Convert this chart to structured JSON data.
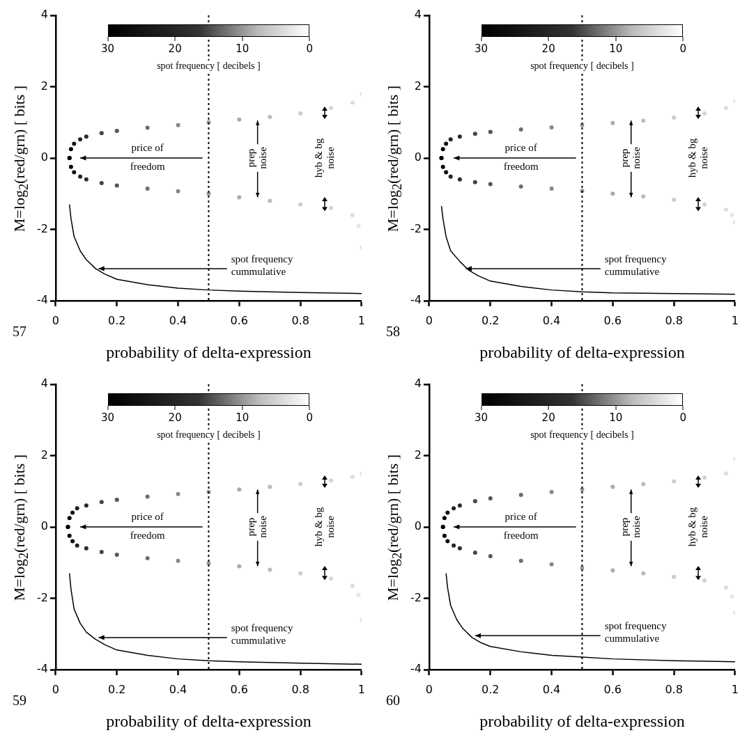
{
  "chart_data": [
    {
      "type": "scatter",
      "xlabel": "probability of delta-expression",
      "ylabel": "M=log$_{2}$(red/grn) [ bits ]",
      "clabel": "spot frequency [ decibels ]",
      "xlim": [
        0,
        1
      ],
      "ylim": [
        -4,
        4
      ],
      "xticks": [
        0,
        0.2,
        0.4,
        0.6,
        0.8,
        1
      ],
      "yticks": [
        -4,
        -2,
        0,
        2,
        4
      ],
      "grid": false,
      "legend": false,
      "marker": "circle",
      "ref_lines": [
        {
          "axis": "x",
          "value": 0.5,
          "color": "#000000",
          "line_style": "dotted"
        }
      ],
      "annotations": [
        "price of freedom",
        "prep noise",
        "hyb & bg noise",
        {
          "text": "spot frequency cummulative",
          "x": 0.14,
          "y": -3.1
        },
        "57",
        "30",
        "20",
        "10",
        "0"
      ],
      "series": [
        {
          "x": [
            0.045,
            0.05,
            0.06,
            0.08,
            0.1,
            0.15,
            0.2,
            0.3,
            0.4,
            0.5,
            0.6,
            0.7,
            0.8,
            0.9,
            0.97,
            1
          ],
          "values": [
            0,
            0.25,
            0.4,
            0.52,
            0.6,
            0.7,
            0.76,
            0.85,
            0.92,
            1.0,
            1.08,
            1.15,
            1.25,
            1.4,
            1.55,
            1.8
          ],
          "colors": [
            "#000000",
            "#000000",
            "#111111",
            "#222222",
            "#2b2b2b",
            "#444444",
            "#555555",
            "#6e6e6e",
            "#888888",
            "#999999",
            "#aaaaaa",
            "#bbbbbb",
            "#cccccc",
            "#d4d4d4",
            "#dddddd",
            "#e5e5e5"
          ]
        },
        {
          "x": [
            0.045,
            0.05,
            0.06,
            0.08,
            0.1,
            0.15,
            0.2,
            0.3,
            0.4,
            0.5,
            0.6,
            0.7,
            0.8,
            0.9,
            0.97,
            0.99,
            1
          ],
          "values": [
            0,
            -0.25,
            -0.4,
            -0.52,
            -0.6,
            -0.7,
            -0.77,
            -0.86,
            -0.93,
            -1.0,
            -1.1,
            -1.2,
            -1.3,
            -1.4,
            -1.6,
            -1.9,
            -2.5
          ],
          "colors": [
            "#000000",
            "#000000",
            "#111111",
            "#222222",
            "#2b2b2b",
            "#444444",
            "#555555",
            "#6e6e6e",
            "#888888",
            "#999999",
            "#aaaaaa",
            "#bbbbbb",
            "#cccccc",
            "#d4d4d4",
            "#dddddd",
            "#e5e5e5",
            "#e5e5e5"
          ]
        },
        {
          "type": "line",
          "color": "#000000",
          "marker": "none",
          "x": [
            0.045,
            0.05,
            0.06,
            0.08,
            0.1,
            0.13,
            0.16,
            0.2,
            0.3,
            0.4,
            0.5,
            0.6,
            0.8,
            1
          ],
          "values": [
            -1.3,
            -1.7,
            -2.2,
            -2.6,
            -2.85,
            -3.1,
            -3.25,
            -3.4,
            -3.55,
            -3.65,
            -3.7,
            -3.73,
            -3.77,
            -3.8
          ]
        }
      ]
    },
    {
      "type": "scatter",
      "xlabel": "probability of delta-expression",
      "ylabel": "M=log$_{2}$(red/grn) [ bits ]",
      "clabel": "spot frequency [ decibels ]",
      "xlim": [
        0,
        1
      ],
      "ylim": [
        -4,
        4
      ],
      "xticks": [
        0,
        0.2,
        0.4,
        0.6,
        0.8,
        1
      ],
      "yticks": [
        -4,
        -2,
        0,
        2,
        4
      ],
      "grid": false,
      "legend": false,
      "marker": "circle",
      "ref_lines": [
        {
          "axis": "x",
          "value": 0.5,
          "color": "#000000",
          "line_style": "dotted"
        }
      ],
      "annotations": [
        "price of freedom",
        "prep noise",
        "hyb & bg noise",
        {
          "text": "spot frequency cummulative",
          "x": 0.12,
          "y": -3.1
        },
        "58",
        "30",
        "20",
        "10",
        "0"
      ],
      "series": [
        {
          "x": [
            0.04,
            0.045,
            0.055,
            0.07,
            0.1,
            0.15,
            0.2,
            0.3,
            0.4,
            0.5,
            0.6,
            0.7,
            0.8,
            0.9,
            0.97,
            1
          ],
          "values": [
            0,
            0.25,
            0.4,
            0.52,
            0.6,
            0.68,
            0.73,
            0.8,
            0.86,
            0.92,
            0.98,
            1.05,
            1.13,
            1.25,
            1.4,
            1.6
          ],
          "colors": [
            "#000000",
            "#000000",
            "#111111",
            "#222222",
            "#2b2b2b",
            "#444444",
            "#555555",
            "#6e6e6e",
            "#888888",
            "#999999",
            "#aaaaaa",
            "#bbbbbb",
            "#cccccc",
            "#d4d4d4",
            "#dddddd",
            "#e5e5e5"
          ]
        },
        {
          "x": [
            0.04,
            0.045,
            0.055,
            0.07,
            0.1,
            0.15,
            0.2,
            0.3,
            0.4,
            0.5,
            0.6,
            0.7,
            0.8,
            0.9,
            0.97,
            0.99,
            1
          ],
          "values": [
            0,
            -0.25,
            -0.4,
            -0.52,
            -0.6,
            -0.68,
            -0.73,
            -0.8,
            -0.86,
            -0.92,
            -1.0,
            -1.08,
            -1.17,
            -1.3,
            -1.45,
            -1.6,
            -1.8
          ],
          "colors": [
            "#000000",
            "#000000",
            "#111111",
            "#222222",
            "#2b2b2b",
            "#444444",
            "#555555",
            "#6e6e6e",
            "#888888",
            "#999999",
            "#aaaaaa",
            "#bbbbbb",
            "#cccccc",
            "#d4d4d4",
            "#dddddd",
            "#e5e5e5",
            "#e5e5e5"
          ]
        },
        {
          "type": "line",
          "color": "#000000",
          "marker": "none",
          "x": [
            0.04,
            0.045,
            0.055,
            0.07,
            0.1,
            0.13,
            0.16,
            0.2,
            0.3,
            0.4,
            0.5,
            0.6,
            0.8,
            1
          ],
          "values": [
            -1.35,
            -1.7,
            -2.2,
            -2.6,
            -2.9,
            -3.15,
            -3.3,
            -3.45,
            -3.6,
            -3.7,
            -3.75,
            -3.78,
            -3.8,
            -3.82
          ]
        }
      ]
    },
    {
      "type": "scatter",
      "xlabel": "probability of delta-expression",
      "ylabel": "M=log$_{2}$(red/grn) [ bits ]",
      "clabel": "spot frequency [ decibels ]",
      "xlim": [
        0,
        1
      ],
      "ylim": [
        -4,
        4
      ],
      "xticks": [
        0,
        0.2,
        0.4,
        0.6,
        0.8,
        1
      ],
      "yticks": [
        -4,
        -2,
        0,
        2,
        4
      ],
      "grid": false,
      "legend": false,
      "marker": "circle",
      "ref_lines": [
        {
          "axis": "x",
          "value": 0.5,
          "color": "#000000",
          "line_style": "dotted"
        }
      ],
      "annotations": [
        "price of freedom",
        "prep noise",
        "hyb & bg noise",
        {
          "text": "spot frequency cummulative",
          "x": 0.14,
          "y": -3.1
        },
        "59",
        "30",
        "20",
        "10",
        "0"
      ],
      "series": [
        {
          "x": [
            0.04,
            0.045,
            0.055,
            0.07,
            0.1,
            0.15,
            0.2,
            0.3,
            0.4,
            0.5,
            0.6,
            0.7,
            0.8,
            0.9,
            0.97,
            1
          ],
          "values": [
            0,
            0.25,
            0.4,
            0.52,
            0.6,
            0.7,
            0.76,
            0.85,
            0.92,
            0.98,
            1.05,
            1.12,
            1.2,
            1.3,
            1.4,
            1.5
          ],
          "colors": [
            "#000000",
            "#000000",
            "#111111",
            "#222222",
            "#2b2b2b",
            "#444444",
            "#555555",
            "#6e6e6e",
            "#888888",
            "#999999",
            "#aaaaaa",
            "#bbbbbb",
            "#cccccc",
            "#d4d4d4",
            "#dddddd",
            "#e5e5e5"
          ]
        },
        {
          "x": [
            0.04,
            0.045,
            0.055,
            0.07,
            0.1,
            0.15,
            0.2,
            0.3,
            0.4,
            0.5,
            0.6,
            0.7,
            0.8,
            0.9,
            0.97,
            0.99,
            1
          ],
          "values": [
            0,
            -0.25,
            -0.4,
            -0.52,
            -0.6,
            -0.7,
            -0.78,
            -0.88,
            -0.95,
            -1.02,
            -1.1,
            -1.2,
            -1.3,
            -1.45,
            -1.65,
            -1.9,
            -2.6
          ],
          "colors": [
            "#000000",
            "#000000",
            "#111111",
            "#222222",
            "#2b2b2b",
            "#444444",
            "#555555",
            "#6e6e6e",
            "#888888",
            "#999999",
            "#aaaaaa",
            "#bbbbbb",
            "#cccccc",
            "#d4d4d4",
            "#dddddd",
            "#e5e5e5",
            "#e5e5e5"
          ]
        },
        {
          "type": "line",
          "color": "#000000",
          "marker": "none",
          "x": [
            0.045,
            0.05,
            0.06,
            0.08,
            0.1,
            0.13,
            0.16,
            0.2,
            0.3,
            0.4,
            0.5,
            0.6,
            0.8,
            1
          ],
          "values": [
            -1.3,
            -1.75,
            -2.3,
            -2.7,
            -2.95,
            -3.15,
            -3.3,
            -3.45,
            -3.6,
            -3.7,
            -3.75,
            -3.78,
            -3.82,
            -3.85
          ]
        }
      ]
    },
    {
      "type": "scatter",
      "xlabel": "probability of delta-expression",
      "ylabel": "M=log$_{2}$(red/grn) [ bits ]",
      "clabel": "spot frequency [ decibels ]",
      "xlim": [
        0,
        1
      ],
      "ylim": [
        -4,
        4
      ],
      "xticks": [
        0,
        0.2,
        0.4,
        0.6,
        0.8,
        1
      ],
      "yticks": [
        -4,
        -2,
        0,
        2,
        4
      ],
      "grid": false,
      "legend": false,
      "marker": "circle",
      "ref_lines": [
        {
          "axis": "x",
          "value": 0.5,
          "color": "#000000",
          "line_style": "dotted"
        }
      ],
      "annotations": [
        "price of freedom",
        "prep noise",
        "hyb & bg noise",
        {
          "text": "spot frequency cummulative",
          "x": 0.15,
          "y": -3.05
        },
        "60",
        "30",
        "20",
        "10",
        "0"
      ],
      "series": [
        {
          "x": [
            0.045,
            0.05,
            0.06,
            0.08,
            0.1,
            0.15,
            0.2,
            0.3,
            0.4,
            0.5,
            0.6,
            0.7,
            0.8,
            0.9,
            0.97,
            1
          ],
          "values": [
            0,
            0.25,
            0.4,
            0.52,
            0.6,
            0.72,
            0.8,
            0.9,
            0.98,
            1.05,
            1.12,
            1.2,
            1.28,
            1.38,
            1.5,
            1.9
          ],
          "colors": [
            "#000000",
            "#000000",
            "#111111",
            "#222222",
            "#2b2b2b",
            "#444444",
            "#555555",
            "#6e6e6e",
            "#888888",
            "#999999",
            "#aaaaaa",
            "#bbbbbb",
            "#cccccc",
            "#d4d4d4",
            "#dddddd",
            "#e5e5e5"
          ]
        },
        {
          "x": [
            0.045,
            0.05,
            0.06,
            0.08,
            0.1,
            0.15,
            0.2,
            0.3,
            0.4,
            0.5,
            0.6,
            0.7,
            0.8,
            0.9,
            0.97,
            0.99,
            1
          ],
          "values": [
            0,
            -0.25,
            -0.4,
            -0.52,
            -0.6,
            -0.72,
            -0.82,
            -0.95,
            -1.05,
            -1.15,
            -1.22,
            -1.3,
            -1.4,
            -1.5,
            -1.7,
            -1.95,
            -2.4
          ],
          "colors": [
            "#000000",
            "#000000",
            "#111111",
            "#222222",
            "#2b2b2b",
            "#444444",
            "#555555",
            "#6e6e6e",
            "#888888",
            "#999999",
            "#aaaaaa",
            "#bbbbbb",
            "#cccccc",
            "#d4d4d4",
            "#dddddd",
            "#e5e5e5",
            "#e5e5e5"
          ]
        },
        {
          "type": "line",
          "color": "#000000",
          "marker": "none",
          "x": [
            0.055,
            0.06,
            0.07,
            0.09,
            0.11,
            0.14,
            0.17,
            0.2,
            0.3,
            0.4,
            0.5,
            0.6,
            0.8,
            1
          ],
          "values": [
            -1.3,
            -1.7,
            -2.2,
            -2.6,
            -2.85,
            -3.1,
            -3.25,
            -3.35,
            -3.5,
            -3.6,
            -3.65,
            -3.7,
            -3.75,
            -3.78
          ]
        }
      ]
    }
  ]
}
